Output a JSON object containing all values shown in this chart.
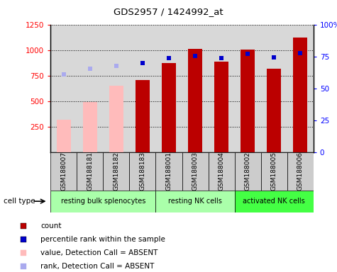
{
  "title": "GDS2957 / 1424992_at",
  "samples": [
    "GSM188007",
    "GSM188181",
    "GSM188182",
    "GSM188183",
    "GSM188001",
    "GSM188003",
    "GSM188004",
    "GSM188002",
    "GSM188005",
    "GSM188006"
  ],
  "count_values": [
    320,
    490,
    650,
    710,
    870,
    1010,
    890,
    1005,
    820,
    1120
  ],
  "count_absent": [
    true,
    true,
    true,
    false,
    false,
    false,
    false,
    false,
    false,
    false
  ],
  "percentile_values": [
    760,
    820,
    845,
    870,
    920,
    940,
    920,
    960,
    930,
    970
  ],
  "percentile_absent": [
    true,
    true,
    true,
    false,
    false,
    false,
    false,
    false,
    false,
    false
  ],
  "ylim_left": [
    0,
    1250
  ],
  "ylim_right": [
    0,
    100
  ],
  "yticks_left": [
    250,
    500,
    750,
    1000,
    1250
  ],
  "yticks_right": [
    0,
    25,
    50,
    75,
    100
  ],
  "group_ranges": [
    [
      0,
      3,
      "resting bulk splenocytes",
      "#aaffaa"
    ],
    [
      4,
      6,
      "resting NK cells",
      "#aaffaa"
    ],
    [
      7,
      9,
      "activated NK cells",
      "#44ff44"
    ]
  ],
  "bar_color_present": "#bb0000",
  "bar_color_absent": "#ffbbbb",
  "dot_color_present": "#0000cc",
  "dot_color_absent": "#aaaaee",
  "bar_width": 0.55,
  "plot_bg_color": "#d8d8d8",
  "sample_box_color": "#cccccc",
  "cell_type_label": "cell type",
  "legend_items": [
    [
      "#bb0000",
      "count"
    ],
    [
      "#0000cc",
      "percentile rank within the sample"
    ],
    [
      "#ffbbbb",
      "value, Detection Call = ABSENT"
    ],
    [
      "#aaaaee",
      "rank, Detection Call = ABSENT"
    ]
  ]
}
